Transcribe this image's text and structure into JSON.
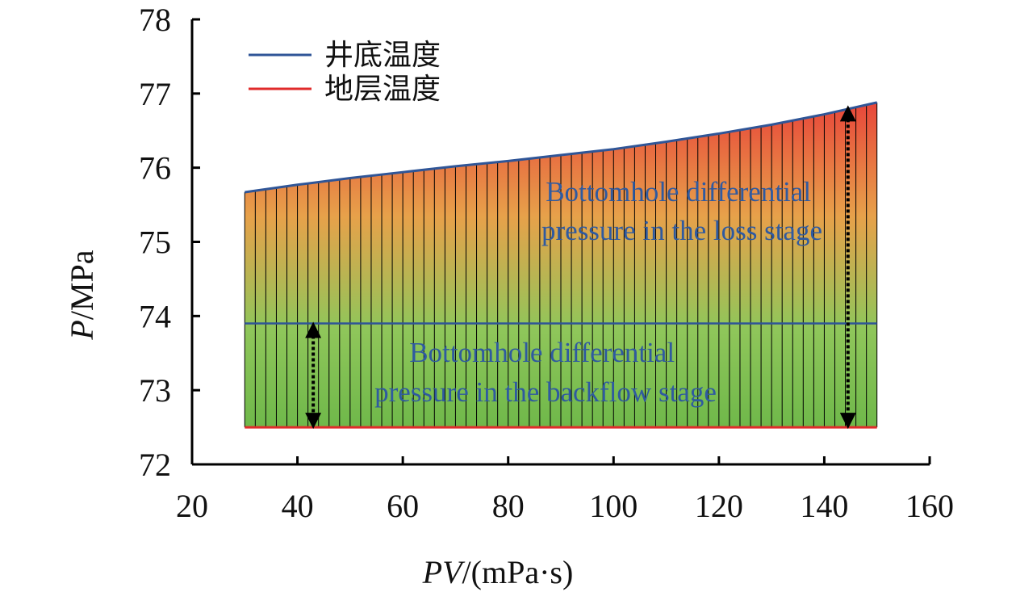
{
  "chart_data": {
    "type": "area",
    "title": "",
    "xlabel_italic": "PV",
    "xlabel_rest": "/(mPa·s)",
    "ylabel_italic": "P",
    "ylabel_rest": "/MPa",
    "xlim": [
      20,
      160
    ],
    "ylim": [
      72,
      78
    ],
    "x_ticks": [
      "20",
      "40",
      "60",
      "80",
      "100",
      "120",
      "140",
      "160"
    ],
    "y_ticks": [
      "72",
      "73",
      "74",
      "75",
      "76",
      "77",
      "78"
    ],
    "grid": false,
    "legend_position": "top-left",
    "colors": {
      "upper_line": "#2f5597",
      "middle_line": "#2f5597",
      "lower_line": "#e02b2b",
      "fill_top": "#e8463a",
      "fill_mid": "#e7a14a",
      "fill_green": "#8fc65a",
      "fill_bottom": "#6fb84a",
      "annotation_text": "#2f5aa0"
    },
    "series": [
      {
        "name": "井底温度",
        "x": [
          30,
          40,
          50,
          60,
          70,
          80,
          90,
          100,
          110,
          120,
          130,
          140,
          150
        ],
        "y": [
          75.67,
          75.77,
          75.86,
          75.94,
          76.02,
          76.09,
          76.17,
          76.25,
          76.35,
          76.46,
          76.58,
          76.72,
          76.88
        ]
      },
      {
        "name": "地层温度",
        "x": [
          30,
          150
        ],
        "y": [
          72.5,
          72.5
        ]
      }
    ],
    "middle_line": {
      "x": [
        30,
        150
      ],
      "y": [
        73.9,
        73.9
      ]
    },
    "annotations": [
      {
        "lines": [
          "Bottomhole differential",
          "pressure in the loss stage"
        ]
      },
      {
        "lines": [
          "Bottomhole differential",
          "pressure in the backflow stage"
        ]
      }
    ],
    "arrows": [
      {
        "x": 43,
        "y_from": 72.5,
        "y_to": 73.9
      },
      {
        "x": 144.5,
        "y_from": 72.5,
        "y_to": 76.82
      }
    ],
    "hatch_spacing_x": 2
  }
}
